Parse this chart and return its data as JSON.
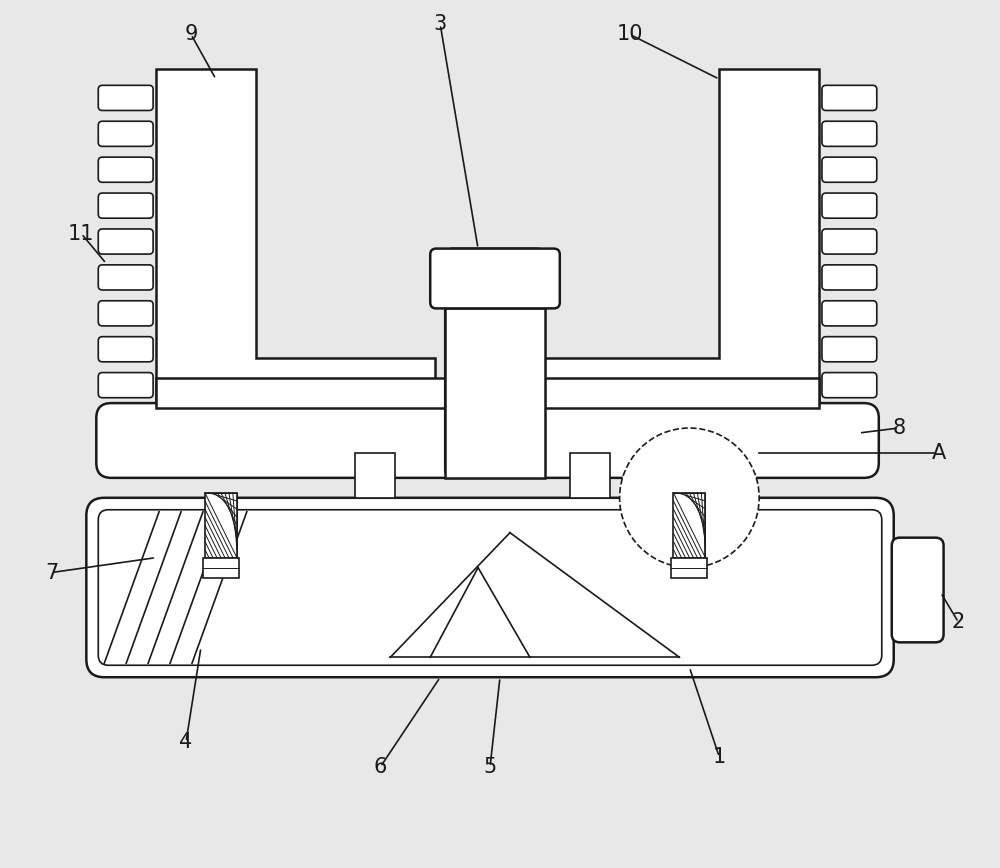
{
  "bg_color": "#e8e8e8",
  "line_color": "#1a1a1a",
  "fig_width": 10.0,
  "fig_height": 8.68,
  "lw_main": 1.8,
  "lw_inner": 1.2,
  "lw_thin": 0.7
}
